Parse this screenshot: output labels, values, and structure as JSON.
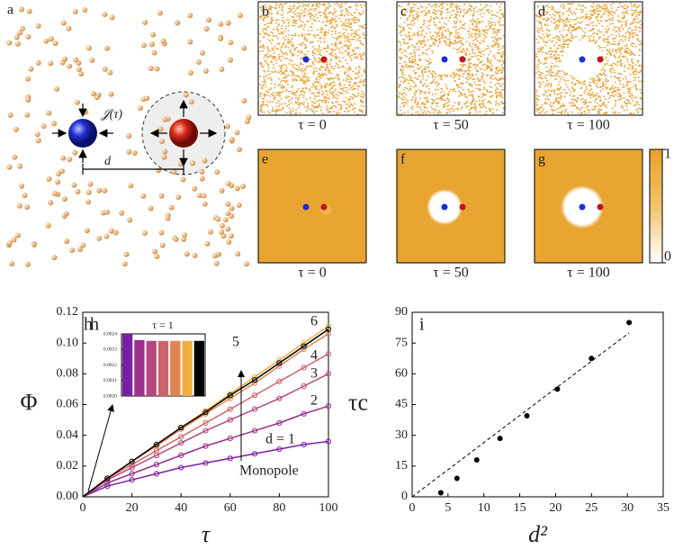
{
  "panel_a": {
    "label": "a",
    "flux": "𝒥(τ)",
    "distance": "d"
  },
  "snapshots": [
    {
      "label": "b",
      "caption": "τ = 0"
    },
    {
      "label": "c",
      "caption": "τ = 50"
    },
    {
      "label": "d",
      "caption": "τ = 100"
    },
    {
      "label": "e",
      "caption": "τ = 0"
    },
    {
      "label": "f",
      "caption": "τ = 50"
    },
    {
      "label": "g",
      "caption": "τ = 100"
    }
  ],
  "colorbar": {
    "ticks": [
      0,
      1
    ]
  },
  "chart_data": [
    {
      "type": "line",
      "panel": "h",
      "xlabel": "τ",
      "ylabel": "Φ",
      "xlim": [
        0,
        100
      ],
      "xticks": [
        0,
        20,
        40,
        60,
        80,
        100
      ],
      "ylim": [
        0,
        0.12
      ],
      "yticks": [
        {
          "value": 0,
          "label": "0.00"
        },
        {
          "value": 0.02,
          "label": "0.02"
        },
        {
          "value": 0.04,
          "label": "0.04"
        },
        {
          "value": 0.06,
          "label": "0.06"
        },
        {
          "value": 0.08,
          "label": "0.08"
        },
        {
          "value": 0.1,
          "label": "0.10"
        },
        {
          "value": 0.12,
          "label": "0.12"
        }
      ],
      "x": [
        0,
        10,
        20,
        30,
        40,
        50,
        60,
        70,
        80,
        90,
        100
      ],
      "series": [
        {
          "name": "d = 1",
          "color": "#7b1fa2",
          "values": [
            0,
            0.007,
            0.011,
            0.015,
            0.019,
            0.022,
            0.025,
            0.028,
            0.031,
            0.034,
            0.036
          ]
        },
        {
          "name": "2",
          "color": "#9a2f8c",
          "values": [
            0,
            0.009,
            0.015,
            0.021,
            0.027,
            0.033,
            0.038,
            0.043,
            0.048,
            0.054,
            0.059
          ]
        },
        {
          "name": "3",
          "color": "#b4487a",
          "values": [
            0,
            0.011,
            0.019,
            0.027,
            0.035,
            0.043,
            0.05,
            0.057,
            0.064,
            0.072,
            0.08
          ]
        },
        {
          "name": "4",
          "color": "#cc6467",
          "values": [
            0,
            0.012,
            0.021,
            0.03,
            0.039,
            0.048,
            0.057,
            0.066,
            0.075,
            0.084,
            0.093
          ]
        },
        {
          "name": "5",
          "color": "#e08452",
          "values": [
            0,
            0.012,
            0.023,
            0.033,
            0.044,
            0.054,
            0.064,
            0.074,
            0.085,
            0.096,
            0.106
          ]
        },
        {
          "name": "6",
          "color": "#f0b040",
          "values": [
            0,
            0.012,
            0.023,
            0.034,
            0.045,
            0.056,
            0.067,
            0.078,
            0.089,
            0.1,
            0.111
          ]
        },
        {
          "name": "Monopole",
          "color": "#000000",
          "values": [
            0,
            0.012,
            0.023,
            0.034,
            0.045,
            0.055,
            0.066,
            0.076,
            0.087,
            0.098,
            0.109
          ]
        }
      ]
    },
    {
      "type": "bar",
      "title": "τ = 1",
      "categories": [
        null,
        null,
        null,
        null,
        null,
        null,
        null
      ],
      "values": [
        0.0024,
        0.00236,
        0.002355,
        0.002355,
        0.002355,
        0.002355,
        0.002355
      ],
      "colors": [
        "#7b1fa2",
        "#9a2f8c",
        "#b4487a",
        "#cc6467",
        "#e08452",
        "#f0b040",
        "#000000"
      ],
      "ylim": [
        0.002,
        0.0024
      ],
      "yticks": [
        {
          "value": 0.002,
          "label": "0.0020"
        },
        0.0021,
        0.0022,
        0.0023,
        0.0024
      ]
    },
    {
      "type": "scatter",
      "panel": "i",
      "xlabel": "d²",
      "ylabel": "τc",
      "xlim": [
        0,
        35
      ],
      "xticks": [
        0,
        5,
        10,
        15,
        20,
        25,
        30,
        35
      ],
      "ylim": [
        0,
        90
      ],
      "yticks": [
        0,
        15,
        30,
        45,
        60,
        75,
        90
      ],
      "x": [
        4,
        6.25,
        9,
        12.25,
        16,
        20.25,
        25,
        30.25
      ],
      "values": [
        2,
        9,
        18,
        28.5,
        39.5,
        52.5,
        67.5,
        85
      ],
      "fit": {
        "x": [
          0,
          30.25
        ],
        "values": [
          0,
          80
        ]
      }
    }
  ]
}
